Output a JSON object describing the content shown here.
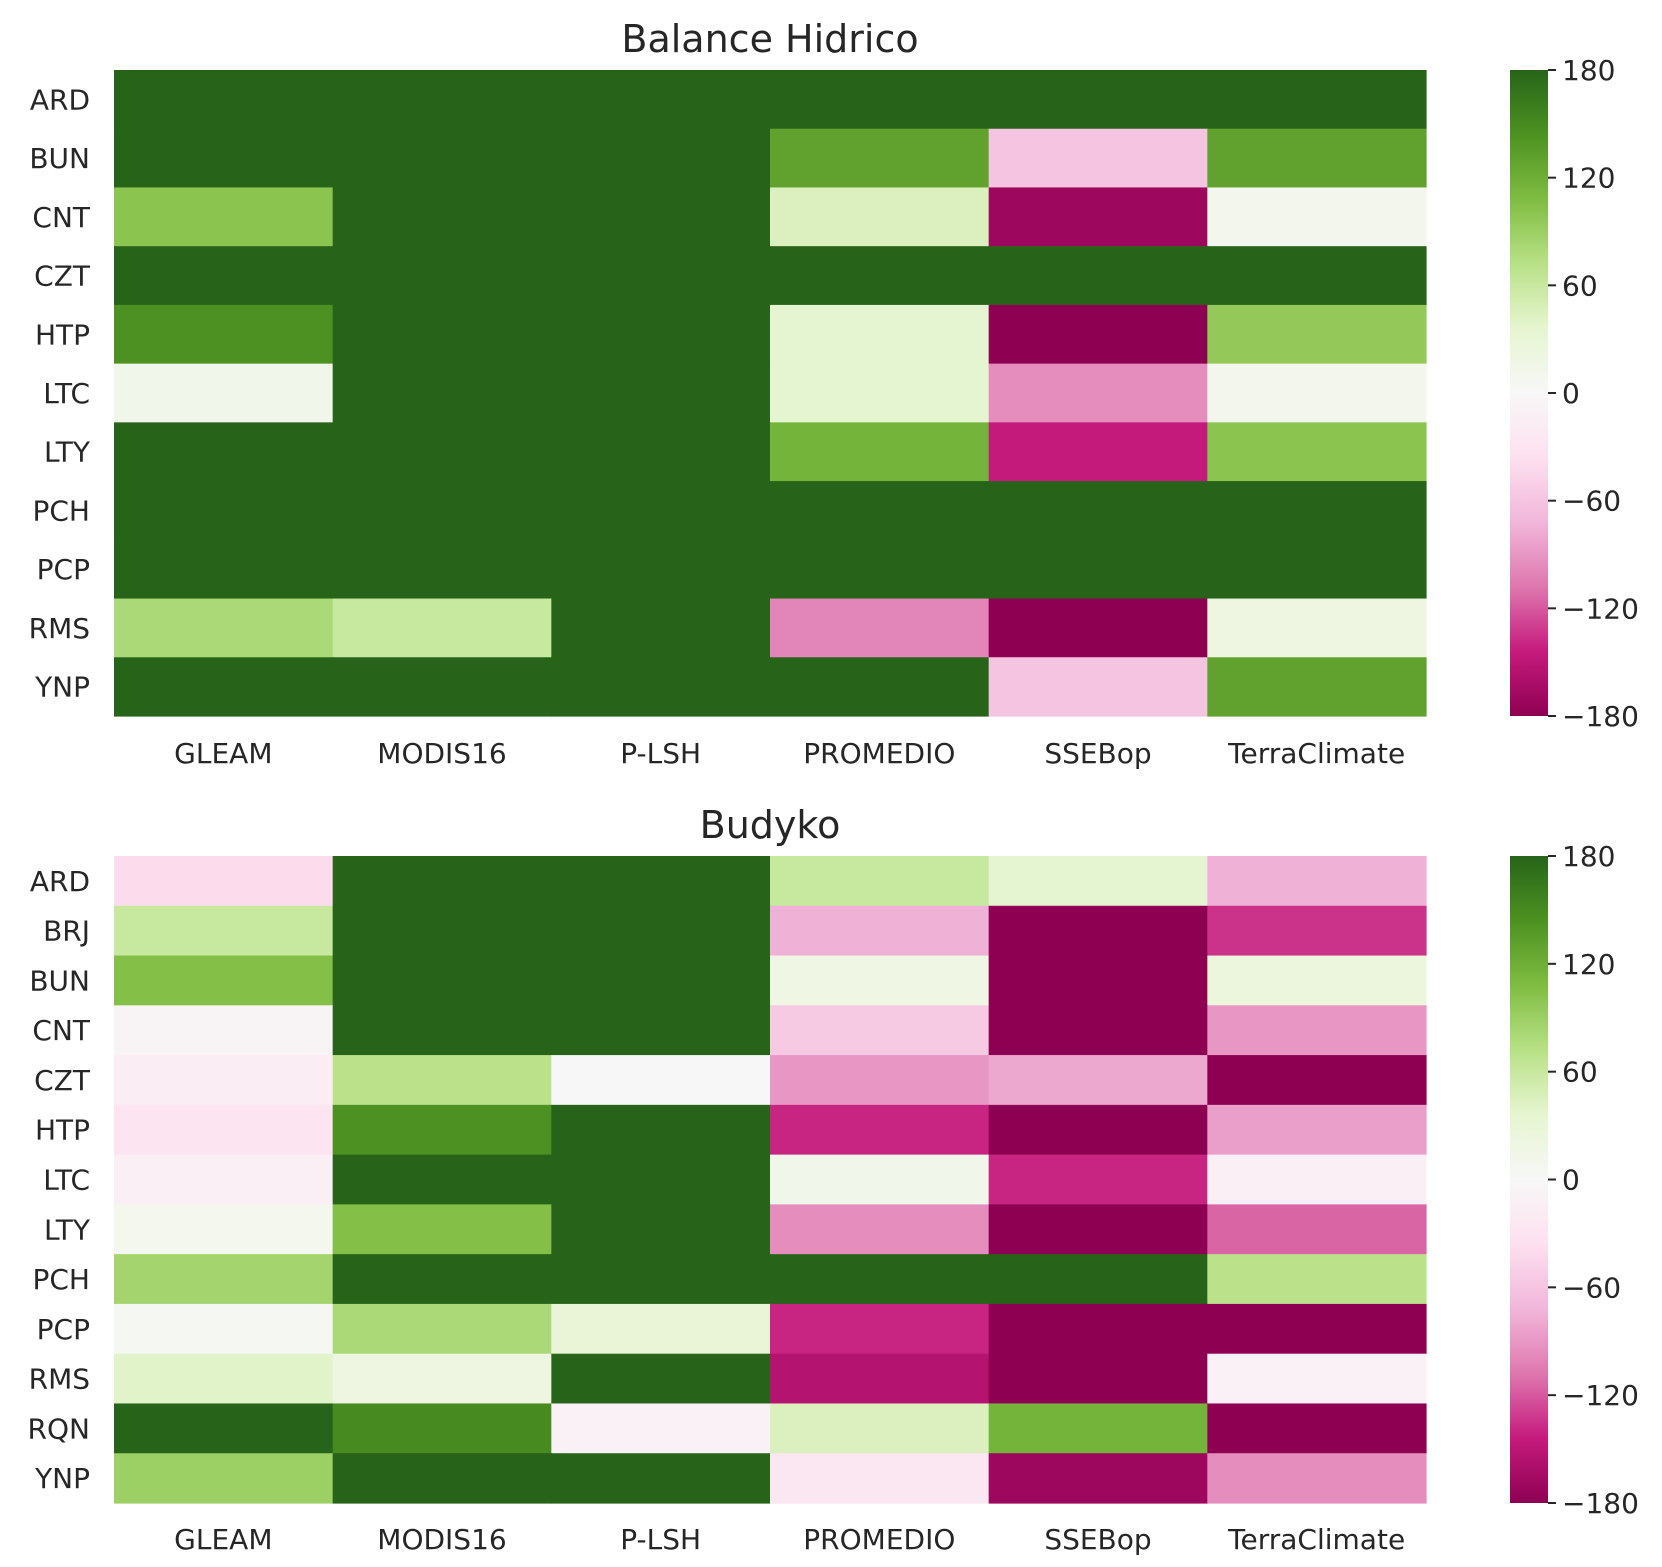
{
  "chart_data": [
    {
      "type": "heatmap",
      "title": "Balance Hidrico",
      "colormap": "PiYG",
      "vmin": -180,
      "vmax": 180,
      "colorbar_ticks": [
        "180",
        "120",
        "60",
        "0",
        "−60",
        "−120",
        "−180"
      ],
      "x_labels": [
        "GLEAM",
        "MODIS16",
        "P-LSH",
        "PROMEDIO",
        "SSEBop",
        "TerraClimate"
      ],
      "y_labels": [
        "ARD",
        "BUN",
        "CNT",
        "CZT",
        "HTP",
        "LTC",
        "LTY",
        "PCH",
        "PCP",
        "RMS",
        "YNP"
      ],
      "values": [
        [
          180,
          180,
          180,
          180,
          180,
          180
        ],
        [
          180,
          180,
          180,
          130,
          -60,
          130
        ],
        [
          100,
          180,
          180,
          45,
          -170,
          10
        ],
        [
          180,
          180,
          180,
          180,
          180,
          180
        ],
        [
          145,
          180,
          180,
          35,
          -180,
          95
        ],
        [
          12,
          180,
          180,
          35,
          -95,
          10
        ],
        [
          180,
          180,
          180,
          115,
          -145,
          100
        ],
        [
          180,
          180,
          180,
          180,
          180,
          180
        ],
        [
          180,
          180,
          180,
          180,
          180,
          180
        ],
        [
          80,
          60,
          180,
          -100,
          -180,
          20
        ],
        [
          180,
          180,
          180,
          180,
          -60,
          130
        ]
      ]
    },
    {
      "type": "heatmap",
      "title": "Budyko",
      "colormap": "PiYG",
      "vmin": -180,
      "vmax": 180,
      "colorbar_ticks": [
        "180",
        "120",
        "60",
        "0",
        "−60",
        "−120",
        "−180"
      ],
      "x_labels": [
        "GLEAM",
        "MODIS16",
        "P-LSH",
        "PROMEDIO",
        "SSEBop",
        "TerraClimate"
      ],
      "y_labels": [
        "ARD",
        "BRJ",
        "BUN",
        "CNT",
        "CZT",
        "HTP",
        "LTC",
        "LTY",
        "PCH",
        "PCP",
        "RMS",
        "RQN",
        "YNP"
      ],
      "values": [
        [
          -40,
          180,
          180,
          60,
          35,
          -75
        ],
        [
          60,
          180,
          180,
          -75,
          -180,
          -135
        ],
        [
          105,
          180,
          180,
          18,
          -180,
          25
        ],
        [
          -5,
          180,
          180,
          -55,
          -180,
          -90
        ],
        [
          -15,
          70,
          0,
          -90,
          -80,
          -180
        ],
        [
          -30,
          145,
          180,
          -140,
          -180,
          -85
        ],
        [
          -12,
          180,
          180,
          12,
          -140,
          -12
        ],
        [
          8,
          105,
          180,
          -95,
          -180,
          -115
        ],
        [
          85,
          180,
          180,
          180,
          180,
          70
        ],
        [
          5,
          80,
          30,
          -140,
          -180,
          -180
        ],
        [
          40,
          20,
          180,
          -155,
          -180,
          -10
        ],
        [
          180,
          150,
          -10,
          45,
          115,
          -180
        ],
        [
          90,
          180,
          180,
          -25,
          -170,
          -95
        ]
      ]
    }
  ]
}
